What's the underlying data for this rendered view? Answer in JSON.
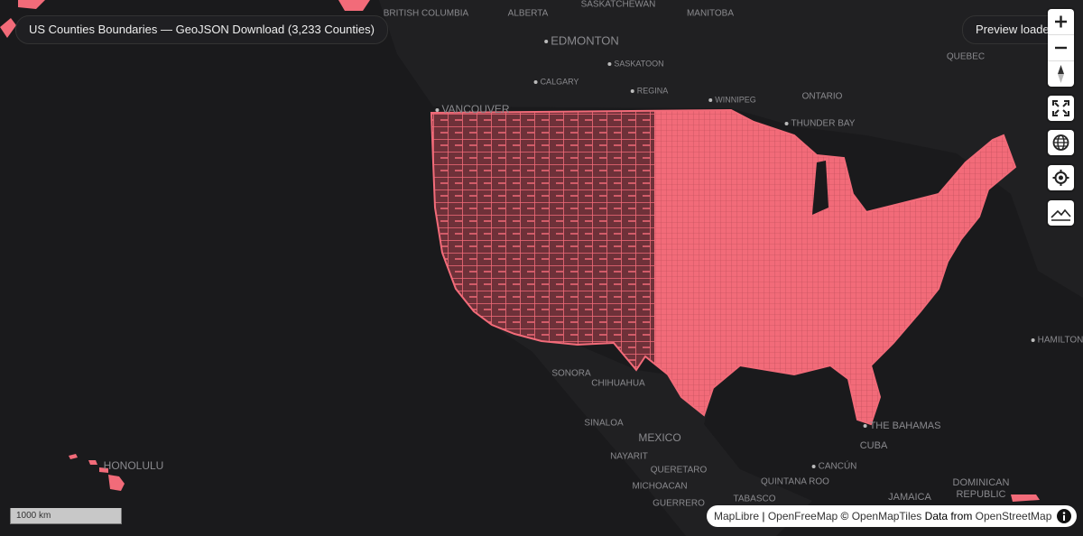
{
  "header": {
    "title": "US Counties Boundaries — GeoJSON Download (3,233 Counties)",
    "status": "Preview loaded"
  },
  "map": {
    "places": [
      "BRITISH COLUMBIA",
      "ALBERTA",
      "SASKATCHEWAN",
      "MANITOBA",
      "EDMONTON",
      "SASKATOON",
      "CALGARY",
      "REGINA",
      "WINNIPEG",
      "ONTARIO",
      "THUNDER BAY",
      "QUEBEC",
      "VANCOUVER",
      "HAMILTON",
      "SONORA",
      "CHIHUAHUA",
      "SINALOA",
      "MEXICO",
      "NAYARIT",
      "QUERETARO",
      "MICHOACAN",
      "GUERRERO",
      "TABASCO",
      "CANCÚN",
      "QUINTANA ROO",
      "CUBA",
      "THE BAHAMAS",
      "JAMAICA",
      "DOMINICAN",
      "REPUBLIC",
      "HONOLULU"
    ],
    "scale": "1000 km",
    "attribution": [
      "MapLibre",
      " | ",
      "OpenFreeMap",
      " © ",
      "OpenMapTiles",
      " Data from ",
      "OpenStreetMap"
    ]
  }
}
